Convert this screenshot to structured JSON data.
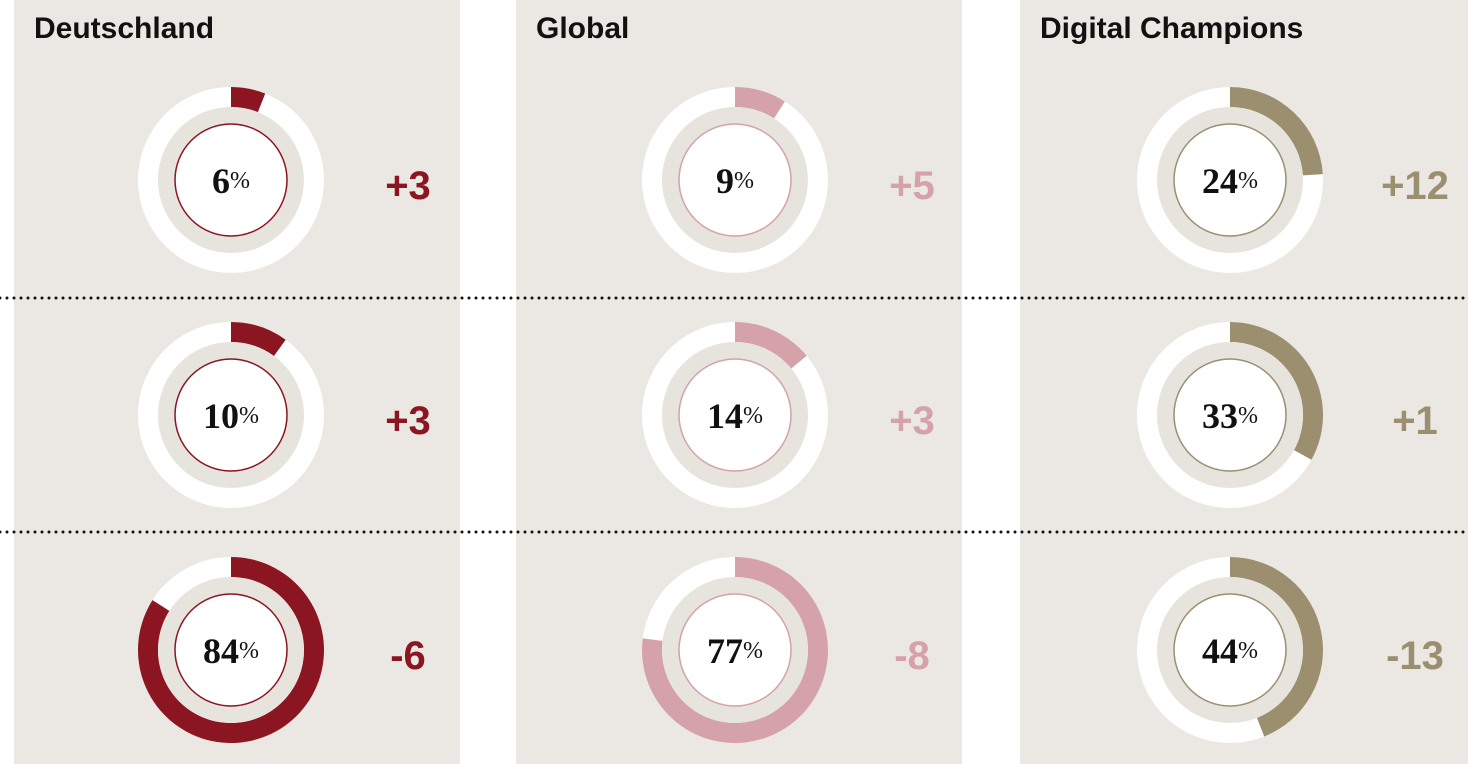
{
  "chart_data": [
    {
      "type": "donut",
      "title": "Deutschland",
      "color": "#8b1520",
      "unit": "%",
      "values": [
        6,
        10,
        84
      ],
      "changes": [
        3,
        3,
        -6
      ],
      "change_labels": [
        "+3",
        "+3",
        "-6"
      ]
    },
    {
      "type": "donut",
      "title": "Global",
      "color": "#d4a2a8",
      "unit": "%",
      "values": [
        9,
        14,
        77
      ],
      "changes": [
        5,
        3,
        -8
      ],
      "change_labels": [
        "+5",
        "+3",
        "-8"
      ]
    },
    {
      "type": "donut",
      "title": "Digital Champions",
      "color": "#9b8f70",
      "unit": "%",
      "values": [
        24,
        33,
        44
      ],
      "changes": [
        12,
        1,
        -13
      ],
      "change_labels": [
        "+12",
        "+1",
        "-13"
      ]
    }
  ]
}
